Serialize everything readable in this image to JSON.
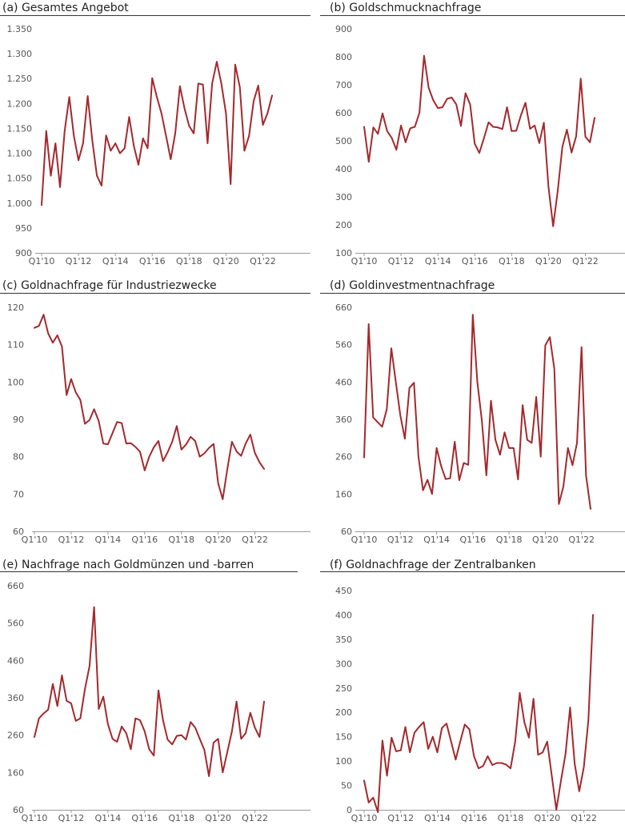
{
  "style": {
    "line_color": "#a4282c"
  },
  "x_labels": [
    "Q1'10",
    "Q1'12",
    "Q1'14",
    "Q1'16",
    "Q1'18",
    "Q1'20",
    "Q1'22"
  ],
  "chart_data": [
    {
      "id": "a",
      "type": "line",
      "title": "(a) Gesamtes Angebot",
      "ylim": [
        900,
        1350
      ],
      "yticks": [
        900,
        950,
        1000,
        1050,
        1100,
        1150,
        1200,
        1250,
        1300,
        1350
      ],
      "ytick_labels": [
        "900",
        "950",
        "1.000",
        "1.050",
        "1.100",
        "1.150",
        "1.200",
        "1.250",
        "1.300",
        "1.350"
      ],
      "x_labels": [
        "Q1'10",
        "Q1'12",
        "Q1'14",
        "Q1'16",
        "Q1'18",
        "Q1'20",
        "Q1'22"
      ],
      "x_range": [
        0,
        55
      ],
      "values": [
        996,
        1145,
        1055,
        1120,
        1032,
        1145,
        1213,
        1135,
        1086,
        1120,
        1215,
        1125,
        1055,
        1035,
        1136,
        1105,
        1120,
        1100,
        1110,
        1173,
        1115,
        1077,
        1130,
        1110,
        1251,
        1213,
        1180,
        1135,
        1088,
        1140,
        1235,
        1190,
        1155,
        1140,
        1240,
        1238,
        1120,
        1240,
        1284,
        1240,
        1180,
        1038,
        1278,
        1233,
        1105,
        1135,
        1205,
        1236,
        1157,
        1180,
        1216
      ]
    },
    {
      "id": "b",
      "type": "line",
      "title": "(b) Goldschmucknachfrage",
      "ylim": [
        100,
        900
      ],
      "yticks": [
        100,
        200,
        300,
        400,
        500,
        600,
        700,
        800,
        900
      ],
      "ytick_labels": [
        "100",
        "200",
        "300",
        "400",
        "500",
        "600",
        "700",
        "800",
        "900"
      ],
      "x_labels": [
        "Q1'10",
        "Q1'12",
        "Q1'14",
        "Q1'16",
        "Q1'18",
        "Q1'20",
        "Q1'22"
      ],
      "x_range": [
        0,
        55
      ],
      "values": [
        550,
        425,
        548,
        525,
        598,
        535,
        510,
        468,
        555,
        495,
        545,
        550,
        600,
        804,
        690,
        645,
        617,
        620,
        650,
        655,
        630,
        553,
        670,
        630,
        490,
        457,
        510,
        566,
        550,
        548,
        542,
        620,
        535,
        536,
        590,
        636,
        543,
        555,
        492,
        565,
        335,
        195,
        320,
        478,
        540,
        458,
        517,
        722,
        515,
        495,
        582
      ]
    },
    {
      "id": "c",
      "type": "line",
      "title": "(c) Goldnachfrage für Industriezwecke",
      "ylim": [
        60,
        120
      ],
      "yticks": [
        60,
        70,
        80,
        90,
        100,
        110,
        120
      ],
      "ytick_labels": [
        "60",
        "70",
        "80",
        "90",
        "100",
        "110",
        "120"
      ],
      "x_labels": [
        "Q1'10",
        "Q1'12",
        "Q1'14",
        "Q1'16",
        "Q1'18",
        "Q1'20",
        "Q1'22"
      ],
      "x_range": [
        0,
        55
      ],
      "values": [
        114.5,
        115,
        118,
        113,
        110.5,
        112.5,
        109.5,
        96.5,
        100.8,
        97.2,
        95.2,
        88.8,
        89.8,
        92.7,
        89.5,
        83.5,
        83.3,
        86.3,
        89.3,
        89,
        83.5,
        83.6,
        82.6,
        81.3,
        76.3,
        80,
        82.5,
        84.2,
        78.8,
        81.2,
        84,
        88.2,
        81.9,
        83.2,
        85.3,
        84.2,
        80,
        80.9,
        82.3,
        83.4,
        72.9,
        68.6,
        76.7,
        84,
        81.4,
        80.2,
        83.5,
        85.9,
        81,
        78.5,
        76.7
      ]
    },
    {
      "id": "d",
      "type": "line",
      "title": "(d) Goldinvestmentnachfrage",
      "ylim": [
        60,
        660
      ],
      "yticks": [
        60,
        160,
        260,
        360,
        460,
        560,
        660
      ],
      "ytick_labels": [
        "60",
        "160",
        "260",
        "360",
        "460",
        "560",
        "660"
      ],
      "x_labels": [
        "Q1'10",
        "Q1'12",
        "Q1'14",
        "Q1'16",
        "Q1'18",
        "Q1'20",
        "Q1'22"
      ],
      "x_range": [
        0,
        55
      ],
      "values": [
        258,
        615,
        365,
        352,
        340,
        387,
        550,
        460,
        370,
        308,
        444,
        458,
        260,
        170,
        198,
        160,
        283,
        235,
        200,
        202,
        300,
        197,
        243,
        238,
        640,
        460,
        355,
        210,
        410,
        305,
        265,
        325,
        283,
        283,
        199,
        398,
        305,
        297,
        420,
        260,
        558,
        580,
        495,
        133,
        180,
        283,
        237,
        297,
        553,
        210,
        120
      ]
    },
    {
      "id": "e",
      "type": "line",
      "title": "(e) Nachfrage nach Goldmünzen und -barren",
      "ylim": [
        60,
        660
      ],
      "yticks": [
        60,
        160,
        260,
        360,
        460,
        560,
        660
      ],
      "ytick_labels": [
        "60",
        "160",
        "260",
        "360",
        "460",
        "560",
        "660"
      ],
      "x_labels": [
        "Q1'10",
        "Q1'12",
        "Q1'14",
        "Q1'16",
        "Q1'18",
        "Q1'20",
        "Q1'22"
      ],
      "x_range": [
        0,
        55
      ],
      "values": [
        255,
        305,
        318,
        328,
        397,
        338,
        420,
        352,
        345,
        298,
        305,
        383,
        445,
        603,
        330,
        363,
        290,
        250,
        242,
        283,
        265,
        222,
        305,
        300,
        270,
        222,
        205,
        380,
        300,
        248,
        235,
        258,
        260,
        248,
        295,
        280,
        250,
        220,
        150,
        240,
        250,
        160,
        215,
        270,
        350,
        250,
        265,
        320,
        280,
        255,
        350
      ]
    },
    {
      "id": "f",
      "type": "line",
      "title": "(f) Goldnachfrage der Zentralbanken",
      "ylim": [
        0,
        450
      ],
      "yticks": [
        0,
        50,
        100,
        150,
        200,
        250,
        300,
        350,
        400,
        450
      ],
      "ytick_labels": [
        "0",
        "50",
        "100",
        "150",
        "200",
        "250",
        "300",
        "350",
        "400",
        "450"
      ],
      "x_labels": [
        "Q1'10",
        "Q1'12",
        "Q1'14",
        "Q1'16",
        "Q1'18",
        "Q1'20",
        "Q1'22"
      ],
      "x_range": [
        0,
        55
      ],
      "values": [
        60,
        15,
        25,
        -5,
        142,
        70,
        148,
        120,
        122,
        170,
        118,
        158,
        170,
        180,
        125,
        150,
        118,
        168,
        177,
        140,
        103,
        140,
        175,
        165,
        110,
        85,
        90,
        110,
        92,
        96,
        96,
        93,
        85,
        140,
        240,
        180,
        148,
        228,
        113,
        118,
        140,
        70,
        0,
        60,
        115,
        210,
        95,
        38,
        88,
        185,
        400
      ]
    }
  ]
}
